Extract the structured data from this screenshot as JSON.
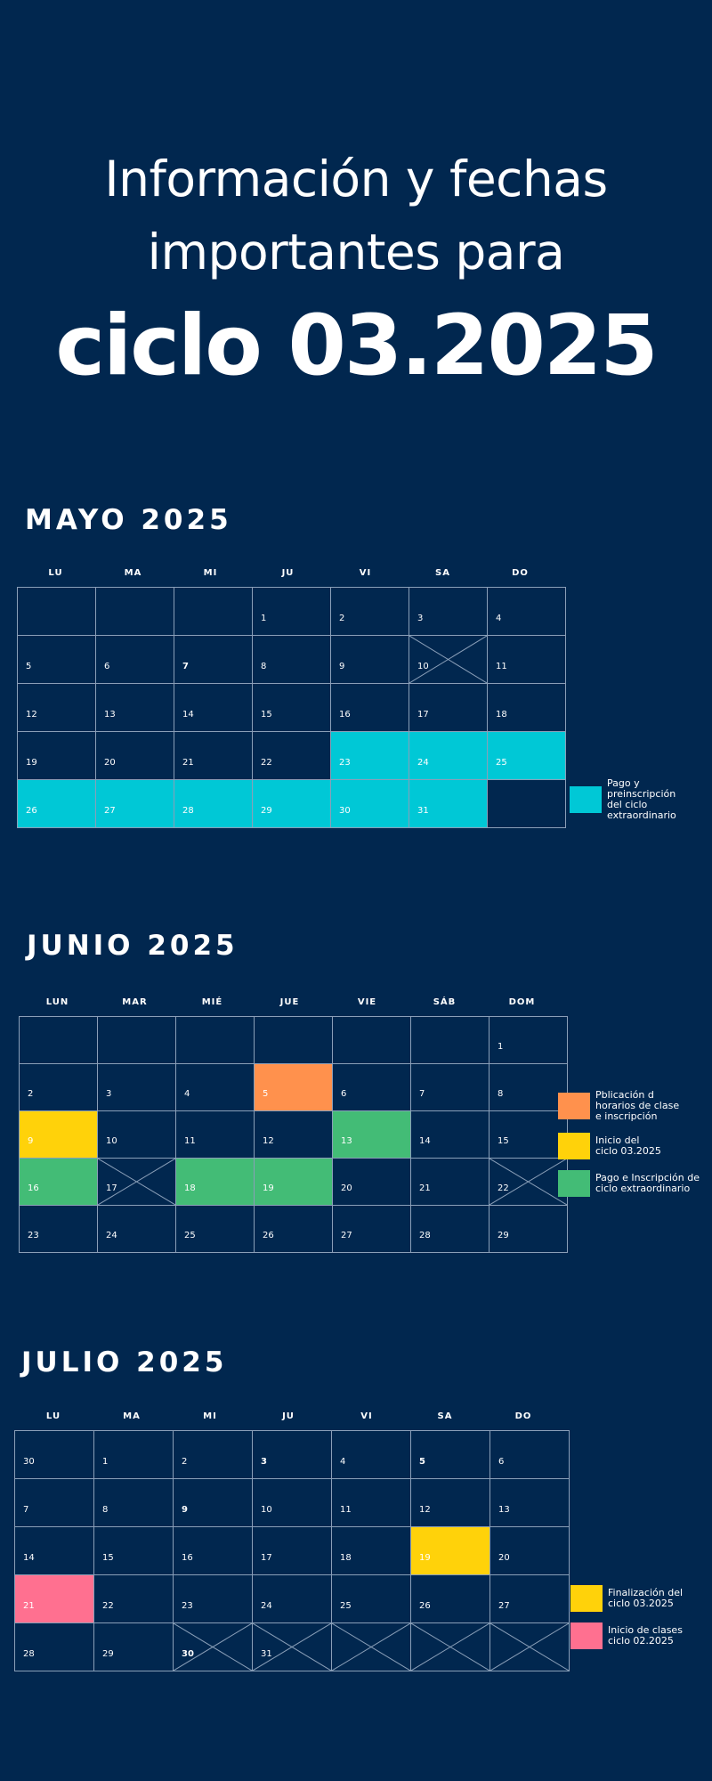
{
  "header": {
    "line1": "Información y fechas",
    "line2": "importantes para",
    "line3": "ciclo 03.2025"
  },
  "colors": {
    "background": "#01274f",
    "cyan": "#00c8d6",
    "orange": "#ff914d",
    "yellow": "#ffd20a",
    "green": "#43bc76",
    "pink": "#ff7090"
  },
  "months": [
    {
      "title": "MAYO 2025",
      "weekdays": [
        "LU",
        "MA",
        "MI",
        "JU",
        "VI",
        "SA",
        "DO"
      ],
      "weeks": [
        [
          {
            "d": ""
          },
          {
            "d": ""
          },
          {
            "d": ""
          },
          {
            "d": "1"
          },
          {
            "d": "2"
          },
          {
            "d": "3"
          },
          {
            "d": "4"
          }
        ],
        [
          {
            "d": "5"
          },
          {
            "d": "6"
          },
          {
            "d": "7",
            "bold": true
          },
          {
            "d": "8"
          },
          {
            "d": "9"
          },
          {
            "d": "10",
            "x": true
          },
          {
            "d": "11"
          }
        ],
        [
          {
            "d": "12"
          },
          {
            "d": "13"
          },
          {
            "d": "14"
          },
          {
            "d": "15"
          },
          {
            "d": "16"
          },
          {
            "d": "17"
          },
          {
            "d": "18"
          }
        ],
        [
          {
            "d": "19"
          },
          {
            "d": "20"
          },
          {
            "d": "21"
          },
          {
            "d": "22"
          },
          {
            "d": "23",
            "c": "cyan"
          },
          {
            "d": "24",
            "c": "cyan"
          },
          {
            "d": "25",
            "c": "cyan"
          }
        ],
        [
          {
            "d": "26",
            "c": "cyan"
          },
          {
            "d": "27",
            "c": "cyan"
          },
          {
            "d": "28",
            "c": "cyan"
          },
          {
            "d": "29",
            "c": "cyan"
          },
          {
            "d": "30",
            "c": "cyan"
          },
          {
            "d": "31",
            "c": "cyan"
          },
          {
            "d": ""
          }
        ]
      ],
      "legend": [
        {
          "color": "cyan",
          "text": "Pago y\npreinscripción\ndel ciclo\nextraordinario"
        }
      ]
    },
    {
      "title": "JUNIO 2025",
      "weekdays": [
        "LUN",
        "MAR",
        "MIÉ",
        "JUE",
        "VIE",
        "SÁB",
        "DOM"
      ],
      "weeks": [
        [
          {
            "d": ""
          },
          {
            "d": ""
          },
          {
            "d": ""
          },
          {
            "d": ""
          },
          {
            "d": ""
          },
          {
            "d": ""
          },
          {
            "d": "1"
          }
        ],
        [
          {
            "d": "2"
          },
          {
            "d": "3"
          },
          {
            "d": "4"
          },
          {
            "d": "5",
            "c": "orange"
          },
          {
            "d": "6"
          },
          {
            "d": "7"
          },
          {
            "d": "8"
          }
        ],
        [
          {
            "d": "9",
            "c": "yellow"
          },
          {
            "d": "10"
          },
          {
            "d": "11"
          },
          {
            "d": "12"
          },
          {
            "d": "13",
            "c": "green"
          },
          {
            "d": "14"
          },
          {
            "d": "15"
          }
        ],
        [
          {
            "d": "16",
            "c": "green"
          },
          {
            "d": "17",
            "x": true
          },
          {
            "d": "18",
            "c": "green"
          },
          {
            "d": "19",
            "c": "green"
          },
          {
            "d": "20"
          },
          {
            "d": "21"
          },
          {
            "d": "22",
            "x": true
          }
        ],
        [
          {
            "d": "23"
          },
          {
            "d": "24"
          },
          {
            "d": "25"
          },
          {
            "d": "26"
          },
          {
            "d": "27"
          },
          {
            "d": "28"
          },
          {
            "d": "29"
          }
        ]
      ],
      "legend": [
        {
          "color": "orange",
          "text": "Pblicación d\nhorarios de clase\ne inscripción"
        },
        {
          "color": "yellow",
          "text": "Inicio del\nciclo 03.2025"
        },
        {
          "color": "green",
          "text": "Pago e Inscripción de\nciclo extraordinario"
        }
      ]
    },
    {
      "title": "JULIO 2025",
      "weekdays": [
        "LU",
        "MA",
        "MI",
        "JU",
        "VI",
        "SA",
        "DO"
      ],
      "weeks": [
        [
          {
            "d": "30"
          },
          {
            "d": "1"
          },
          {
            "d": "2"
          },
          {
            "d": "3",
            "bold": true
          },
          {
            "d": "4"
          },
          {
            "d": "5",
            "bold": true
          },
          {
            "d": "6"
          }
        ],
        [
          {
            "d": "7"
          },
          {
            "d": "8"
          },
          {
            "d": "9",
            "bold": true
          },
          {
            "d": "10"
          },
          {
            "d": "11"
          },
          {
            "d": "12"
          },
          {
            "d": "13"
          }
        ],
        [
          {
            "d": "14"
          },
          {
            "d": "15"
          },
          {
            "d": "16"
          },
          {
            "d": "17"
          },
          {
            "d": "18"
          },
          {
            "d": "19",
            "c": "yellow"
          },
          {
            "d": "20"
          }
        ],
        [
          {
            "d": "21",
            "c": "pink"
          },
          {
            "d": "22"
          },
          {
            "d": "23"
          },
          {
            "d": "24"
          },
          {
            "d": "25"
          },
          {
            "d": "26"
          },
          {
            "d": "27"
          }
        ],
        [
          {
            "d": "28"
          },
          {
            "d": "29"
          },
          {
            "d": "30",
            "bold": true,
            "x": true
          },
          {
            "d": "31",
            "x": true
          },
          {
            "d": "",
            "x": true
          },
          {
            "d": "",
            "x": true
          },
          {
            "d": "",
            "x": true
          }
        ]
      ],
      "legend": [
        {
          "color": "yellow",
          "text": "Finalización del\nciclo 03.2025"
        },
        {
          "color": "pink",
          "text": "Inicio de clases\nciclo 02.2025"
        }
      ]
    }
  ]
}
